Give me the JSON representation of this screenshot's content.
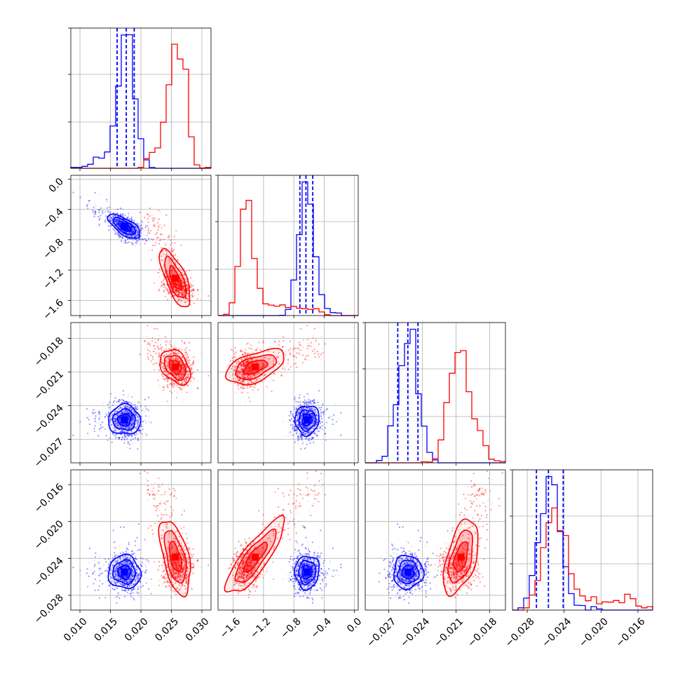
{
  "chart_data": {
    "type": "corner",
    "series": [
      {
        "name": "",
        "color": "#0000ff"
      },
      {
        "name": "",
        "color": "#ff0000"
      }
    ],
    "parameters": [
      {
        "range": [
          0.0085,
          0.0315
        ],
        "ticks": [
          0.01,
          0.015,
          0.02,
          0.025,
          0.03
        ],
        "tick_labels": [
          "0.010",
          "0.015",
          "0.020",
          "0.025",
          "0.030"
        ],
        "blue_quantiles": [
          0.0161,
          0.0176,
          0.0189
        ],
        "blue": {
          "mean": 0.0176,
          "sd": 0.0013
        },
        "red": {
          "mean": 0.0261,
          "sd": 0.0013
        }
      },
      {
        "range": [
          -1.8,
          0.05
        ],
        "ticks": [
          -1.6,
          -1.2,
          -0.8,
          -0.4,
          0.0
        ],
        "tick_labels": [
          "−1.6",
          "−1.2",
          "−0.8",
          "−0.4",
          "0.0"
        ],
        "blue_quantiles": [
          -0.72,
          -0.64,
          -0.55
        ],
        "blue": {
          "mean": -0.64,
          "sd": 0.08
        },
        "red": {
          "mean": -1.42,
          "sd": 0.1
        }
      },
      {
        "range": [
          -0.0291,
          -0.0166
        ],
        "ticks": [
          -0.027,
          -0.024,
          -0.021,
          -0.018
        ],
        "tick_labels": [
          "−0.027",
          "−0.024",
          "−0.021",
          "−0.018"
        ],
        "blue_quantiles": [
          -0.0262,
          -0.0253,
          -0.0244
        ],
        "blue": {
          "mean": -0.0253,
          "sd": 0.0009
        },
        "red": {
          "mean": -0.0208,
          "sd": 0.0009
        }
      },
      {
        "range": [
          -0.0296,
          -0.0144
        ],
        "ticks": [
          -0.028,
          -0.024,
          -0.02,
          -0.016
        ],
        "tick_labels": [
          "−0.028",
          "−0.024",
          "−0.020",
          "−0.016"
        ],
        "blue_quantiles": [
          -0.027,
          -0.0257,
          -0.0241
        ],
        "blue": {
          "mean": -0.0256,
          "sd": 0.0011
        },
        "red": {
          "mean": -0.025,
          "sd": 0.0012
        }
      }
    ],
    "histogram_bins": 25,
    "grid": true,
    "legend": "none"
  }
}
